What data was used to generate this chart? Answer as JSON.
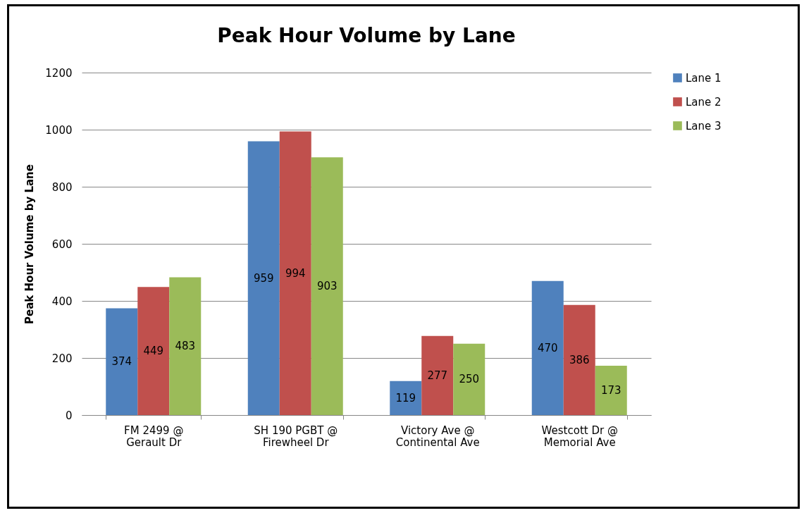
{
  "chart_data": {
    "type": "bar",
    "title": "Peak Hour Volume by Lane",
    "ylabel": "Peak Hour Volume by Lane",
    "categories": [
      "FM 2499 @\nGerault Dr",
      "SH 190 PGBT @\nFirewheel Dr",
      "Victory Ave @\nContinental Ave",
      "Westcott Dr @\nMemorial Ave"
    ],
    "series": [
      {
        "name": "Lane 1",
        "color": "#4f81bd",
        "values": [
          374,
          959,
          119,
          470
        ]
      },
      {
        "name": "Lane 2",
        "color": "#c0504d",
        "values": [
          449,
          994,
          277,
          386
        ]
      },
      {
        "name": "Lane 3",
        "color": "#9bbb59",
        "values": [
          483,
          903,
          250,
          173
        ]
      }
    ],
    "ylim": [
      0,
      1200
    ],
    "yticks": [
      0,
      200,
      400,
      600,
      800,
      1000,
      1200
    ],
    "grid": "y",
    "legend": "right",
    "data_labels": true
  }
}
